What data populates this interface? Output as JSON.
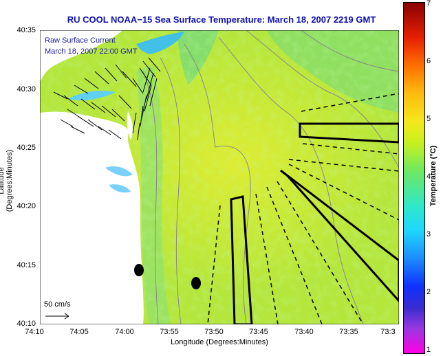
{
  "title": "RU COOL  NOAA−15  Sea Surface Temperature:  March 18, 2007 2219 GMT",
  "legend": {
    "line1": "Raw Surface Current",
    "line2": "March 18, 2007 22:00 GMT"
  },
  "scale": {
    "label": "50 cm/s"
  },
  "axes": {
    "xlabel": "Longitude (Degrees:Minutes)",
    "ylabel": "Latitude (Degrees:Minutes)",
    "xticks": [
      "74:10",
      "74:05",
      "74:00",
      "73:55",
      "73:50",
      "73:45",
      "73:40",
      "73:35",
      "73:3"
    ],
    "yticks": [
      "40:35",
      "40:30",
      "40:25",
      "40:20",
      "40:15",
      "40:10"
    ]
  },
  "colorbar": {
    "label": "Temperature (°C)",
    "ticks": [
      "7",
      "6",
      "5",
      "4",
      "3",
      "2",
      "1"
    ]
  },
  "colors": {
    "water": "#b4e63c",
    "land": "#ffffff",
    "title": "#1010b0"
  }
}
